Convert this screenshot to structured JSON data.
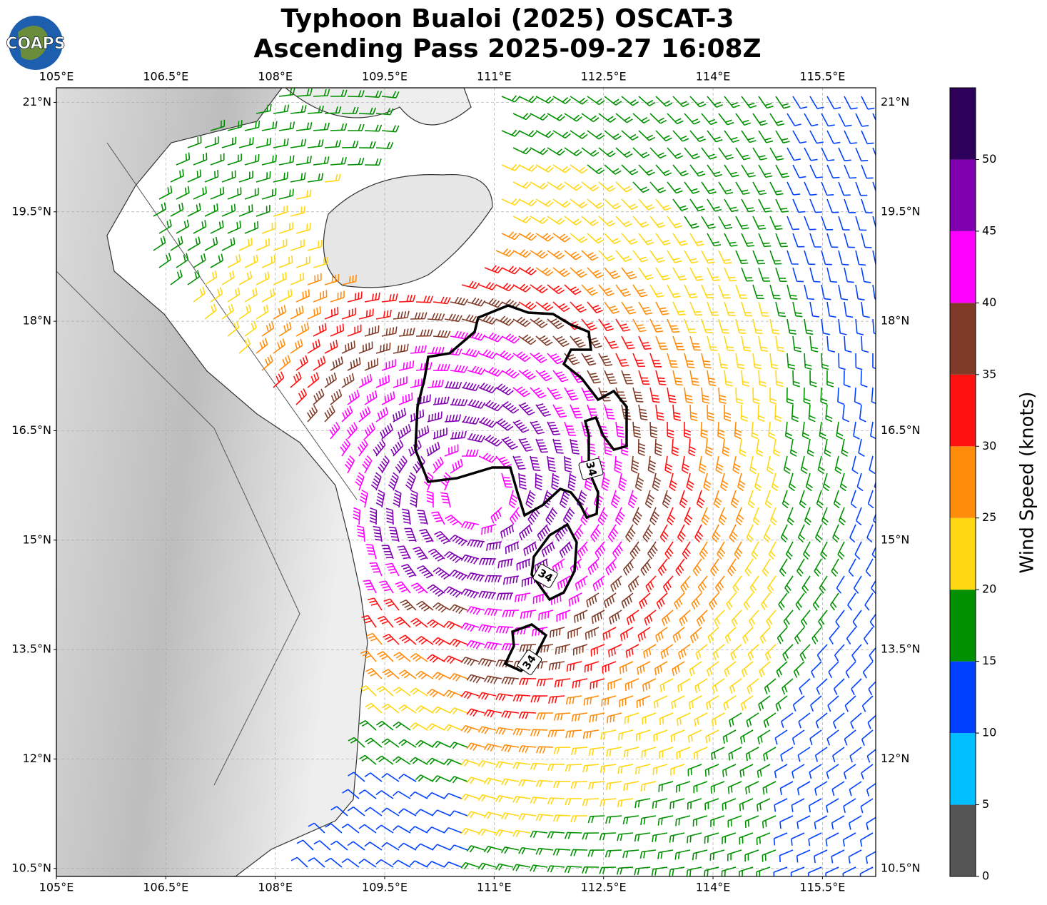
{
  "map": {
    "title": [
      "Typhoon Bualoi (2025) OSCAT-3",
      "Ascending Pass 2025-09-27 16:08Z"
    ],
    "logo": "COAPS",
    "xlim": [
      105,
      116.23
    ],
    "ylim": [
      10.39,
      21.2
    ],
    "xticks": [
      {
        "value": 105,
        "label": "105°E"
      },
      {
        "value": 106.5,
        "label": "106.5°E"
      },
      {
        "value": 108,
        "label": "108°E"
      },
      {
        "value": 109.5,
        "label": "109.5°E"
      },
      {
        "value": 111,
        "label": "111°E"
      },
      {
        "value": 112.5,
        "label": "112.5°E"
      },
      {
        "value": 114,
        "label": "114°E"
      },
      {
        "value": 115.5,
        "label": "115.5°E"
      }
    ],
    "yticks": [
      {
        "value": 10.5,
        "label": "10.5°N"
      },
      {
        "value": 12,
        "label": "12°N"
      },
      {
        "value": 13.5,
        "label": "13.5°N"
      },
      {
        "value": 15,
        "label": "15°N"
      },
      {
        "value": 16.5,
        "label": "16.5°N"
      },
      {
        "value": 18,
        "label": "18°N"
      },
      {
        "value": 19.5,
        "label": "19.5°N"
      },
      {
        "value": 21,
        "label": "21°N"
      }
    ],
    "contour_level": 34,
    "colorbar": {
      "bounds": [
        0,
        5,
        10,
        15,
        20,
        25,
        30,
        35,
        40,
        45,
        50,
        55
      ],
      "colors": [
        "#555555",
        "#00bfff",
        "#0040ff",
        "#009000",
        "#ffd713",
        "#ff8c0a",
        "#ff1010",
        "#7f3b28",
        "#ff00ff",
        "#8000b0",
        "#2d005a"
      ],
      "ticks": [
        0,
        5,
        10,
        15,
        20,
        25,
        30,
        35,
        40,
        45,
        50
      ],
      "label": "Wind Speed (knots)"
    }
  }
}
